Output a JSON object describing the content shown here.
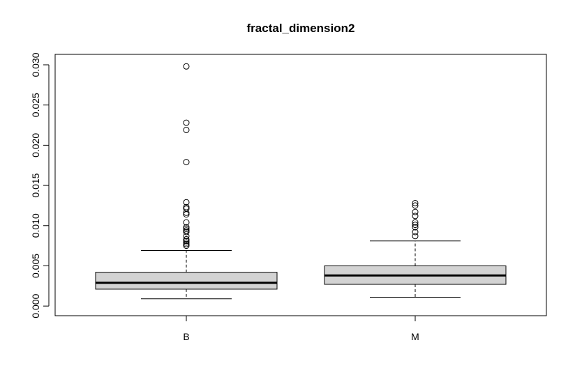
{
  "chart_data": {
    "type": "boxplot",
    "title": "fractal_dimension2",
    "xlabel": "",
    "ylabel": "",
    "ylim": [
      0.0,
      0.03
    ],
    "y_ticks": [
      0.0,
      0.005,
      0.01,
      0.015,
      0.02,
      0.025,
      0.03
    ],
    "y_tick_labels": [
      "0.000",
      "0.005",
      "0.010",
      "0.015",
      "0.020",
      "0.025",
      "0.030"
    ],
    "categories": [
      "B",
      "M"
    ],
    "box_fill": "#d3d3d3",
    "grid": false,
    "boxes": [
      {
        "name": "B",
        "whisker_low": 0.0009,
        "q1": 0.0021,
        "median": 0.0029,
        "q3": 0.0042,
        "whisker_high": 0.0069,
        "outliers": [
          0.0298,
          0.0228,
          0.0219,
          0.0179,
          0.0129,
          0.0123,
          0.0121,
          0.0116,
          0.0114,
          0.0104,
          0.0098,
          0.0096,
          0.0094,
          0.0092,
          0.0087,
          0.0083,
          0.0081,
          0.0079,
          0.0077,
          0.0075
        ]
      },
      {
        "name": "M",
        "whisker_low": 0.0011,
        "q1": 0.0027,
        "median": 0.0038,
        "q3": 0.005,
        "whisker_high": 0.0081,
        "outliers": [
          0.0128,
          0.0125,
          0.0117,
          0.0112,
          0.0104,
          0.0101,
          0.0098,
          0.0092,
          0.0087
        ]
      }
    ]
  }
}
